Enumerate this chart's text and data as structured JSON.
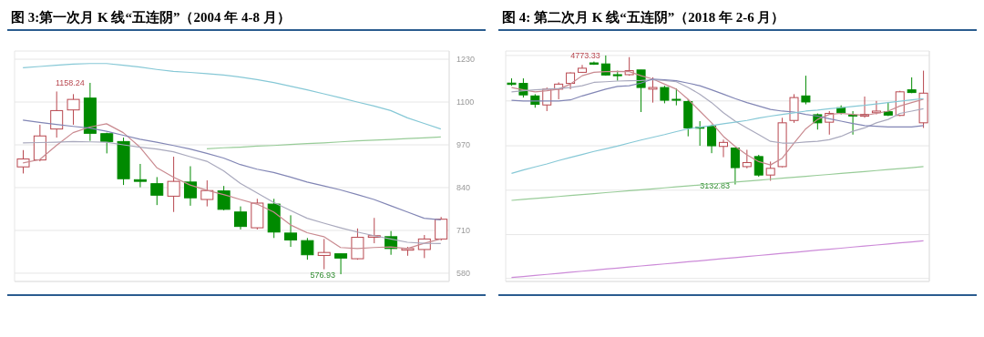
{
  "chart_data": [
    {
      "type": "candlestick",
      "title": "图 3:第一次月 K 线“五连阴”（2004 年 4-8 月）",
      "categories": [
        null,
        null,
        null,
        null,
        null,
        null,
        null,
        null,
        null,
        null,
        null,
        null,
        null,
        null,
        null,
        null,
        null,
        null,
        null,
        null,
        null,
        null,
        null,
        null,
        null,
        null
      ],
      "ohlc": [
        [
          903,
          954,
          883,
          927
        ],
        [
          924,
          1031,
          920,
          997
        ],
        [
          1018,
          1132,
          992,
          1074
        ],
        [
          1076,
          1124,
          1031,
          1108
        ],
        [
          1112,
          1158.24,
          982,
          1005
        ],
        [
          1004,
          1007,
          944,
          980
        ],
        [
          980,
          992,
          848,
          867
        ],
        [
          864,
          912,
          841,
          859
        ],
        [
          852,
          872,
          787,
          817
        ],
        [
          814,
          934,
          766,
          859
        ],
        [
          857,
          905,
          785,
          809
        ],
        [
          804,
          862,
          783,
          831
        ],
        [
          830,
          845,
          771,
          774
        ],
        [
          766,
          783,
          713,
          722
        ],
        [
          718,
          806,
          713,
          793
        ],
        [
          790,
          806,
          687,
          705
        ],
        [
          702,
          756,
          660,
          681
        ],
        [
          679,
          687,
          621,
          636
        ],
        [
          634,
          684,
          592,
          643
        ],
        [
          639,
          639,
          576.93,
          626
        ],
        [
          624,
          716,
          621,
          689
        ],
        [
          689,
          748,
          671,
          694
        ],
        [
          691,
          708,
          636,
          655
        ],
        [
          650,
          660,
          633,
          655
        ],
        [
          652,
          696,
          626,
          684
        ],
        [
          684,
          751,
          679,
          744
        ]
      ],
      "colors": [
        "#b8474f",
        "#b8474f",
        "#b8474f",
        "#b8474f",
        "#008a00",
        "#008a00",
        "#008a00",
        "#008a00",
        "#008a00",
        "#b8474f",
        "#008a00",
        "#b8474f",
        "#008a00",
        "#008a00",
        "#b8474f",
        "#008a00",
        "#008a00",
        "#008a00",
        "#b8474f",
        "#008a00",
        "#b8474f",
        "#b8474f",
        "#008a00",
        "#b8474f",
        "#b8474f",
        "#b8474f"
      ],
      "series": [
        {
          "type": "line",
          "color": "#c98a90",
          "values": [
            915,
            925,
            968,
            1007,
            1024,
            1034,
            1007,
            963,
            901,
            872,
            848,
            832,
            819,
            804,
            790,
            766,
            727,
            703,
            691,
            658,
            655,
            658,
            660,
            655,
            671,
            684
          ]
        },
        {
          "type": "line",
          "color": "#a9a9bd",
          "values": [
            976,
            977,
            978,
            980,
            979,
            978,
            970,
            963,
            957,
            949,
            934,
            920,
            891,
            853,
            824,
            795,
            771,
            747,
            732,
            718,
            705,
            694,
            684,
            674,
            671,
            670
          ]
        },
        {
          "type": "line",
          "color": "#8286b5",
          "values": [
            1045,
            1038,
            1032,
            1026,
            1021,
            1011,
            999,
            987,
            978,
            968,
            957,
            944,
            930,
            910,
            896,
            886,
            872,
            857,
            845,
            833,
            819,
            804,
            785,
            766,
            747,
            742
          ]
        },
        {
          "type": "line",
          "color": "#86c8d6",
          "values": [
            1204,
            1208,
            1212,
            1215,
            1217,
            1217,
            1212,
            1206,
            1199,
            1193,
            1190,
            1186,
            1182,
            1176,
            1168,
            1159,
            1148,
            1137,
            1125,
            1113,
            1100,
            1088,
            1074,
            1052,
            1035,
            1018
          ]
        },
        {
          "type": "line",
          "color": "#98cc98",
          "values": [
            null,
            null,
            null,
            null,
            null,
            null,
            null,
            null,
            null,
            null,
            null,
            958,
            961,
            963,
            966,
            968,
            971,
            974,
            976,
            979,
            982,
            984,
            986,
            989,
            991,
            994
          ]
        }
      ],
      "ylim": [
        555,
        1255
      ],
      "yticks": [
        580,
        710,
        840,
        970,
        1100,
        1230
      ],
      "tick_labels": "y",
      "grid": true,
      "annotations": [
        "1158.24",
        "576.93"
      ]
    },
    {
      "type": "candlestick",
      "title": "图 4: 第二次月 K 线“五连阴”（2018 年 2-6 月）",
      "categories": [
        null,
        null,
        null,
        null,
        null,
        null,
        null,
        null,
        null,
        null,
        null,
        null,
        null,
        null,
        null,
        null,
        null,
        null,
        null,
        null,
        null,
        null,
        null,
        null,
        null,
        null,
        null,
        null,
        null,
        null,
        null,
        null,
        null,
        null,
        null,
        null
      ],
      "ohlc": [
        [
          4422,
          4482,
          4388,
          4405
        ],
        [
          4418,
          4482,
          4238,
          4272
        ],
        [
          4259,
          4281,
          4109,
          4152
        ],
        [
          4144,
          4366,
          4066,
          4345
        ],
        [
          4345,
          4431,
          4216,
          4409
        ],
        [
          4418,
          4559,
          4345,
          4551
        ],
        [
          4559,
          4653,
          4551,
          4611
        ],
        [
          4679,
          4696,
          4653,
          4662
        ],
        [
          4666,
          4773.33,
          4516,
          4525
        ],
        [
          4529,
          4580,
          4452,
          4516
        ],
        [
          4529,
          4752,
          4516,
          4580
        ],
        [
          4589,
          4589,
          4054,
          4366
        ],
        [
          4345,
          4495,
          4174,
          4366
        ],
        [
          4366,
          4388,
          4165,
          4204
        ],
        [
          4216,
          4353,
          4139,
          4204
        ],
        [
          4187,
          4216,
          3745,
          3852
        ],
        [
          3861,
          3938,
          3625,
          3848
        ],
        [
          3874,
          3895,
          3531,
          3625
        ],
        [
          3617,
          3703,
          3480,
          3668
        ],
        [
          3596,
          3596,
          3132.83,
          3347
        ],
        [
          3360,
          3574,
          3338,
          3411
        ],
        [
          3488,
          3510,
          3231,
          3253
        ],
        [
          3253,
          3424,
          3180,
          3338
        ],
        [
          3360,
          3981,
          3351,
          3917
        ],
        [
          3947,
          4281,
          3917,
          4238
        ],
        [
          4259,
          4516,
          4152,
          4182
        ],
        [
          4020,
          4037,
          3831,
          3917
        ],
        [
          3925,
          4066,
          3767,
          4037
        ],
        [
          4109,
          4139,
          4024,
          4045
        ],
        [
          4015,
          4066,
          3767,
          4007
        ],
        [
          4002,
          4251,
          3981,
          4024
        ],
        [
          4045,
          4195,
          4024,
          4066
        ],
        [
          4058,
          4182,
          4002,
          4015
        ],
        [
          4011,
          4324,
          4002,
          4311
        ],
        [
          4336,
          4495,
          4294,
          4302
        ],
        [
          3917,
          4580,
          3852,
          4294
        ]
      ],
      "colors": [
        "#008a00",
        "#008a00",
        "#008a00",
        "#b8474f",
        "#b8474f",
        "#b8474f",
        "#b8474f",
        "#008a00",
        "#008a00",
        "#008a00",
        "#b8474f",
        "#008a00",
        "#b8474f",
        "#008a00",
        "#008a00",
        "#008a00",
        "#008a00",
        "#008a00",
        "#b8474f",
        "#008a00",
        "#b8474f",
        "#008a00",
        "#b8474f",
        "#b8474f",
        "#b8474f",
        "#008a00",
        "#008a00",
        "#b8474f",
        "#008a00",
        "#008a00",
        "#b8474f",
        "#b8474f",
        "#008a00",
        "#b8474f",
        "#008a00",
        "#b8474f"
      ],
      "series": [
        {
          "type": "line",
          "color": "#c98a90",
          "values": [
            4366,
            4336,
            4311,
            4324,
            4345,
            4409,
            4516,
            4559,
            4568,
            4572,
            4568,
            4516,
            4474,
            4409,
            4345,
            4216,
            4066,
            3917,
            3745,
            3617,
            3510,
            3424,
            3381,
            3467,
            3660,
            3840,
            3960,
            4024,
            4037,
            4024,
            4011,
            4037,
            4066,
            4131,
            4174,
            4216
          ]
        },
        {
          "type": "line",
          "color": "#a9a9bd",
          "values": [
            4311,
            4324,
            4336,
            4345,
            4353,
            4366,
            4388,
            4431,
            4439,
            4448,
            4452,
            4456,
            4465,
            4456,
            4439,
            4366,
            4281,
            4174,
            4045,
            3938,
            3852,
            3767,
            3681,
            3660,
            3660,
            3673,
            3681,
            3703,
            3745,
            3809,
            3852,
            3917,
            3960,
            4037,
            4066,
            4096
          ]
        },
        {
          "type": "line",
          "color": "#8286b5",
          "values": [
            4204,
            4195,
            4195,
            4195,
            4195,
            4208,
            4259,
            4302,
            4345,
            4379,
            4388,
            4422,
            4474,
            4465,
            4452,
            4422,
            4388,
            4336,
            4281,
            4225,
            4174,
            4131,
            4088,
            4066,
            4054,
            4024,
            4002,
            3968,
            3938,
            3908,
            3882,
            3874,
            3865,
            3865,
            3865,
            3882
          ]
        },
        {
          "type": "line",
          "color": "#86c8d6",
          "values": [
            3274,
            3317,
            3356,
            3394,
            3437,
            3476,
            3514,
            3553,
            3587,
            3621,
            3660,
            3698,
            3733,
            3767,
            3805,
            3840,
            3861,
            3882,
            3904,
            3925,
            3947,
            3977,
            4002,
            4024,
            4045,
            4066,
            4079,
            4096,
            4109,
            4126,
            4139,
            4156,
            4174,
            4191,
            4208,
            4225
          ]
        },
        {
          "type": "line",
          "color": "#98cc98",
          "values": [
            2931,
            2943,
            2955,
            2968,
            2980,
            2992,
            3004,
            3017,
            3029,
            3041,
            3053,
            3066,
            3078,
            3090,
            3102,
            3115,
            3127,
            3139,
            3151,
            3163,
            3176,
            3188,
            3200,
            3212,
            3225,
            3237,
            3249,
            3261,
            3274,
            3286,
            3298,
            3310,
            3323,
            3335,
            3347,
            3360
          ]
        },
        {
          "type": "line",
          "color": "#cc8ad8",
          "values": [
            1950,
            1963,
            1977,
            1990,
            2003,
            2017,
            2030,
            2043,
            2057,
            2070,
            2083,
            2097,
            2110,
            2123,
            2137,
            2150,
            2163,
            2177,
            2190,
            2203,
            2217,
            2230,
            2243,
            2257,
            2270,
            2283,
            2297,
            2310,
            2323,
            2337,
            2350,
            2363,
            2377,
            2390,
            2403,
            2417
          ]
        }
      ],
      "ylim": [
        1900,
        4830
      ],
      "yticks": [
        {
          "value": 4773,
          "label": null
        },
        {
          "value": 4195,
          "label": null
        },
        {
          "value": 3625,
          "label": null
        },
        {
          "value": 3060,
          "label": null
        },
        {
          "value": 2495,
          "label": null
        },
        {
          "value": 1938,
          "label": null
        }
      ],
      "tick_labels": false,
      "grid": true,
      "annotations": [
        "4773.33",
        "3132.83"
      ]
    }
  ]
}
